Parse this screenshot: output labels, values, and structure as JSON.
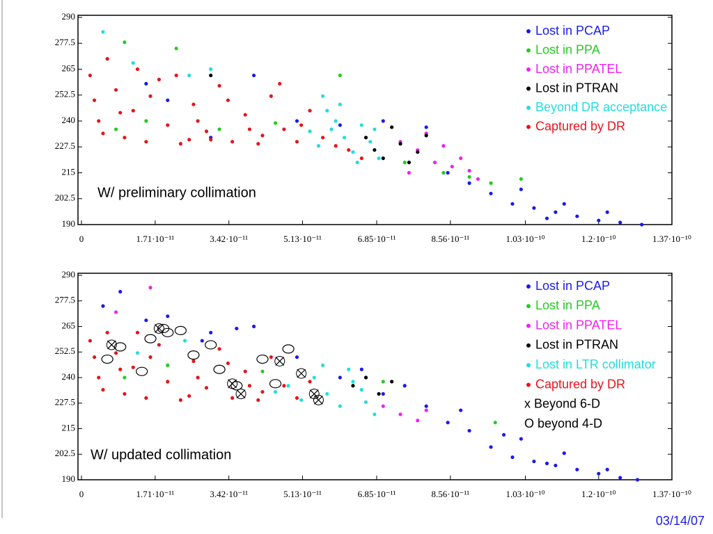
{
  "chart_data": [
    {
      "type": "scatter",
      "annotation": "W/ preliminary collimation",
      "xlim": [
        0,
        1.37e-10
      ],
      "ylim": [
        190,
        290
      ],
      "xticks": [
        0,
        {
          "value": 1.71e-11,
          "label": "1.71·10⁻¹¹"
        },
        {
          "value": 3.42e-11,
          "label": "3.42·10⁻¹¹"
        },
        {
          "value": 5.13e-11,
          "label": "5.13·10⁻¹¹"
        },
        {
          "value": 6.85e-11,
          "label": "6.85·10⁻¹¹"
        },
        {
          "value": 8.56e-11,
          "label": "8.56·10⁻¹¹"
        },
        {
          "value": 1.03e-10,
          "label": "1.03·10⁻¹⁰"
        },
        {
          "value": 1.2e-10,
          "label": "1.2·10⁻¹⁰"
        },
        {
          "value": 1.37e-10,
          "label": "1.37·10⁻¹⁰"
        }
      ],
      "yticks": [
        190,
        202.5,
        215,
        227.5,
        240,
        252.5,
        265,
        277.5,
        290
      ],
      "series": [
        {
          "name": "Lost in PCAP",
          "color": "#1a1aee",
          "marker": "dot",
          "x": [
            9.5e-11,
            1e-10,
            1.05e-10,
            1.1e-10,
            1.15e-10,
            1.2e-10,
            1.25e-10,
            1.3e-10,
            1.02e-10,
            9e-11,
            8.5e-11,
            1.12e-10,
            4e-11,
            2e-11,
            5e-11,
            3e-11,
            6e-11,
            7e-11,
            1.08e-10,
            1.22e-10,
            1.5e-11,
            8e-11
          ],
          "values": [
            205,
            200,
            198,
            196,
            194,
            192,
            191,
            190,
            207,
            210,
            215,
            200,
            262,
            250,
            240,
            232,
            238,
            240,
            193,
            196,
            258,
            237
          ]
        },
        {
          "name": "Lost in PPA",
          "color": "#22cc22",
          "marker": "dot",
          "x": [
            8e-12,
            1.5e-11,
            3.2e-11,
            4.5e-11,
            6e-11,
            7.5e-11,
            9e-11,
            9.5e-11,
            1.02e-10,
            2.2e-11,
            1e-11,
            8.4e-11
          ],
          "values": [
            236,
            240,
            236,
            239,
            262,
            220,
            213,
            210,
            212,
            275,
            278,
            215
          ]
        },
        {
          "name": "Lost in PPATEL",
          "color": "#ee22ee",
          "marker": "dot",
          "x": [
            7.4e-11,
            7.8e-11,
            8.2e-11,
            8.6e-11,
            9e-11,
            8e-11,
            8.4e-11,
            7.6e-11,
            9.2e-11,
            8.8e-11
          ],
          "values": [
            230,
            226,
            220,
            218,
            216,
            234,
            228,
            215,
            212,
            222
          ]
        },
        {
          "name": "Lost in PTRAN",
          "color": "#000000",
          "marker": "dot",
          "x": [
            6.6e-11,
            6.8e-11,
            7e-11,
            7.2e-11,
            7.4e-11,
            7.6e-11,
            7.8e-11,
            3e-11,
            8e-11
          ],
          "values": [
            232,
            226,
            222,
            237,
            229,
            220,
            225,
            262,
            233
          ]
        },
        {
          "name": "Beyond DR acceptance",
          "color": "#22dddd",
          "marker": "dot",
          "x": [
            5.3e-11,
            5.5e-11,
            5.7e-11,
            5.9e-11,
            6.1e-11,
            6.3e-11,
            6.5e-11,
            6.7e-11,
            6.9e-11,
            5.6e-11,
            6e-11,
            6.4e-11,
            2.5e-11,
            3e-11,
            1.2e-11,
            5e-12,
            6.8e-11,
            5.8e-11
          ],
          "values": [
            235,
            228,
            245,
            240,
            232,
            225,
            238,
            230,
            222,
            252,
            248,
            220,
            262,
            265,
            268,
            283,
            236,
            236
          ]
        },
        {
          "name": "Captured by DR",
          "color": "#e8141b",
          "marker": "dot",
          "x": [
            2e-12,
            3e-12,
            4e-12,
            5e-12,
            8e-12,
            1e-11,
            1.2e-11,
            1.5e-11,
            1.8e-11,
            2e-11,
            2.3e-11,
            2.6e-11,
            2.9e-11,
            3.2e-11,
            3.5e-11,
            3.8e-11,
            4.1e-11,
            4.4e-11,
            4.7e-11,
            5e-11,
            5.3e-11,
            5.6e-11,
            5.9e-11,
            6.2e-11,
            6.5e-11,
            1.3e-11,
            2.2e-11,
            3e-11,
            4.6e-11,
            6e-12,
            1.6e-11,
            2.7e-11,
            3.9e-11,
            5.1e-11,
            9e-12,
            2.5e-11,
            4.2e-11,
            3.4e-11
          ],
          "values": [
            262,
            250,
            240,
            234,
            255,
            232,
            245,
            230,
            260,
            238,
            229,
            248,
            235,
            257,
            230,
            243,
            229,
            252,
            236,
            230,
            245,
            232,
            228,
            226,
            222,
            265,
            262,
            231,
            258,
            270,
            252,
            240,
            236,
            238,
            244,
            231,
            233,
            250
          ]
        }
      ]
    },
    {
      "type": "scatter",
      "annotation": "W/ updated collimation",
      "xlim": [
        0,
        1.37e-10
      ],
      "ylim": [
        190,
        290
      ],
      "xticks": [
        0,
        {
          "value": 1.71e-11,
          "label": "1.71·10⁻¹¹"
        },
        {
          "value": 3.42e-11,
          "label": "3.42·10⁻¹¹"
        },
        {
          "value": 5.13e-11,
          "label": "5.13·10⁻¹¹"
        },
        {
          "value": 6.85e-11,
          "label": "6.85·10⁻¹¹"
        },
        {
          "value": 8.56e-11,
          "label": "8.56·10⁻¹¹"
        },
        {
          "value": 1.03e-10,
          "label": "1.03·10⁻¹⁰"
        },
        {
          "value": 1.2e-10,
          "label": "1.2·10⁻¹⁰"
        },
        {
          "value": 1.37e-10,
          "label": "1.37·10⁻¹⁰"
        }
      ],
      "yticks": [
        190,
        202.5,
        215,
        227.5,
        240,
        252.5,
        265,
        277.5,
        290
      ],
      "series": [
        {
          "name": "Lost in PCAP",
          "color": "#1a1aee",
          "marker": "dot",
          "x": [
            9.5e-11,
            1e-10,
            1.05e-10,
            1.1e-10,
            1.15e-10,
            1.2e-10,
            1.25e-10,
            1.29e-10,
            1.02e-10,
            9e-11,
            8.5e-11,
            1.12e-10,
            4e-11,
            2e-11,
            5e-11,
            3e-11,
            6e-11,
            7e-11,
            1.08e-10,
            1.22e-10,
            1.5e-11,
            8e-11,
            5e-12,
            9e-12,
            2.8e-11,
            3.6e-11,
            6.5e-11,
            7.5e-11,
            8.8e-11,
            9.8e-11
          ],
          "values": [
            206,
            201,
            199,
            197,
            195,
            193,
            191,
            190,
            210,
            214,
            218,
            203,
            265,
            270,
            250,
            262,
            240,
            232,
            198,
            195,
            268,
            226,
            275,
            282,
            258,
            264,
            244,
            236,
            224,
            212
          ]
        },
        {
          "name": "Lost in PPA",
          "color": "#22cc22",
          "marker": "dot",
          "x": [
            1e-11,
            2e-11,
            4.2e-11,
            7e-11,
            9.6e-11
          ],
          "values": [
            240,
            246,
            243,
            238,
            218
          ]
        },
        {
          "name": "Lost in PPATEL",
          "color": "#ee22ee",
          "marker": "dot",
          "x": [
            8e-12,
            1.6e-11,
            7e-11,
            7.4e-11,
            7.8e-11,
            8e-11
          ],
          "values": [
            272,
            284,
            226,
            222,
            219,
            224
          ]
        },
        {
          "name": "Lost in PTRAN",
          "color": "#000000",
          "marker": "dot",
          "x": [
            6.3e-11,
            6.6e-11,
            6.9e-11,
            7.2e-11
          ],
          "values": [
            236,
            240,
            232,
            238
          ]
        },
        {
          "name": "Lost in LTR collimator",
          "color": "#22dddd",
          "marker": "dot",
          "x": [
            4.8e-11,
            5.1e-11,
            5.4e-11,
            5.7e-11,
            6e-11,
            6.3e-11,
            6.6e-11,
            6.8e-11,
            5.6e-11,
            6.2e-11,
            4.5e-11,
            1.3e-11,
            2.4e-11,
            6.5e-11
          ],
          "values": [
            236,
            229,
            240,
            232,
            226,
            238,
            228,
            222,
            246,
            244,
            233,
            252,
            258,
            234
          ]
        },
        {
          "name": "Captured by DR",
          "color": "#e8141b",
          "marker": "dot",
          "x": [
            2e-12,
            3e-12,
            4e-12,
            5e-12,
            8e-12,
            1e-11,
            1.2e-11,
            1.5e-11,
            1.8e-11,
            2e-11,
            2.3e-11,
            2.6e-11,
            2.9e-11,
            3.2e-11,
            3.5e-11,
            3.8e-11,
            4.1e-11,
            4.4e-11,
            4.7e-11,
            5e-11,
            5.3e-11,
            6e-12,
            1.6e-11,
            2.7e-11,
            3.9e-11,
            9e-12,
            2.5e-11,
            4.2e-11,
            3.4e-11,
            1.3e-11
          ],
          "values": [
            258,
            250,
            240,
            234,
            252,
            232,
            245,
            230,
            256,
            238,
            229,
            248,
            235,
            254,
            230,
            243,
            229,
            250,
            236,
            230,
            238,
            262,
            250,
            240,
            236,
            244,
            231,
            233,
            247,
            262
          ]
        },
        {
          "name": "x Beyond 6-D",
          "color": "#000000",
          "marker": "x",
          "x": [
            7e-12,
            1.8e-11,
            3.5e-11,
            3.7e-11,
            4.6e-11,
            5.1e-11,
            5.4e-11,
            5.5e-11
          ],
          "values": [
            256,
            264,
            237,
            232,
            248,
            242,
            232,
            229
          ]
        },
        {
          "name": "O beyond 4-D",
          "color": "#000000",
          "marker": "o",
          "x": [
            6e-12,
            9e-12,
            1.4e-11,
            1.6e-11,
            1.9e-11,
            2e-11,
            2.3e-11,
            2.6e-11,
            3e-11,
            3.2e-11,
            3.6e-11,
            4.2e-11,
            4.5e-11,
            4.8e-11
          ],
          "values": [
            249,
            255,
            243,
            259,
            264,
            262,
            263,
            251,
            256,
            244,
            236,
            249,
            237,
            254
          ]
        }
      ]
    }
  ],
  "footer": "03/14/07"
}
